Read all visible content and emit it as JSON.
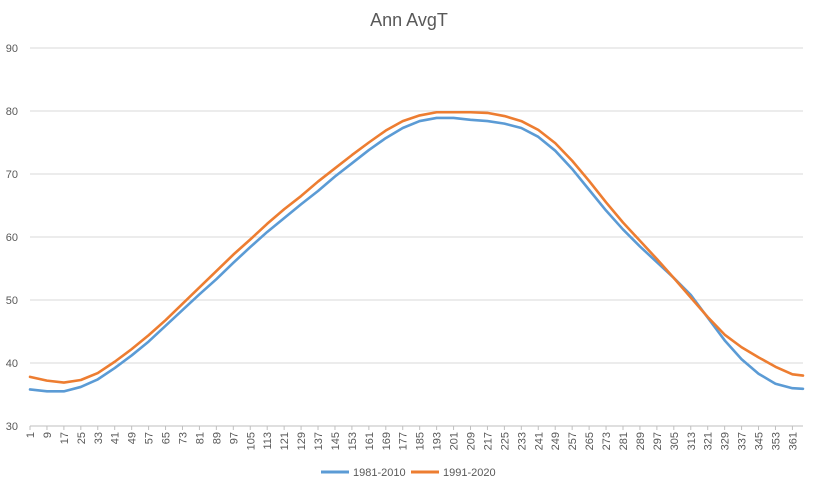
{
  "chart_data": {
    "type": "line",
    "title": "Ann AvgT",
    "xlabel": "",
    "ylabel": "",
    "xlim": [
      1,
      366
    ],
    "ylim": [
      30,
      90
    ],
    "y_ticks": [
      30,
      40,
      50,
      60,
      70,
      80,
      90
    ],
    "x_ticks": [
      1,
      9,
      17,
      25,
      33,
      41,
      49,
      57,
      65,
      73,
      81,
      89,
      97,
      105,
      113,
      121,
      129,
      137,
      145,
      153,
      161,
      169,
      177,
      185,
      193,
      201,
      209,
      217,
      225,
      233,
      241,
      249,
      257,
      265,
      273,
      281,
      289,
      297,
      305,
      313,
      321,
      329,
      337,
      345,
      353,
      361
    ],
    "grid": "horizontal",
    "legend_position": "bottom",
    "colors": {
      "1981-2010": "#5b9bd5",
      "1991-2020": "#ed7d31"
    },
    "series": [
      {
        "name": "1981-2010",
        "x": [
          1,
          9,
          17,
          25,
          33,
          41,
          49,
          57,
          65,
          73,
          81,
          89,
          97,
          105,
          113,
          121,
          129,
          137,
          145,
          153,
          161,
          169,
          177,
          185,
          193,
          201,
          209,
          217,
          225,
          233,
          241,
          249,
          257,
          265,
          273,
          281,
          289,
          297,
          305,
          313,
          321,
          329,
          337,
          345,
          353,
          361,
          366
        ],
        "values": [
          35.8,
          35.5,
          35.5,
          36.2,
          37.4,
          39.2,
          41.2,
          43.4,
          45.9,
          48.4,
          50.9,
          53.3,
          55.9,
          58.4,
          60.8,
          63.0,
          65.2,
          67.3,
          69.6,
          71.7,
          73.8,
          75.7,
          77.3,
          78.4,
          78.9,
          78.9,
          78.6,
          78.4,
          78.0,
          77.3,
          75.9,
          73.7,
          70.8,
          67.5,
          64.2,
          61.2,
          58.5,
          56.0,
          53.5,
          50.8,
          47.2,
          43.6,
          40.6,
          38.3,
          36.7,
          36.0,
          35.9
        ]
      },
      {
        "name": "1991-2020",
        "x": [
          1,
          9,
          17,
          25,
          33,
          41,
          49,
          57,
          65,
          73,
          81,
          89,
          97,
          105,
          113,
          121,
          129,
          137,
          145,
          153,
          161,
          169,
          177,
          185,
          193,
          201,
          209,
          217,
          225,
          233,
          241,
          249,
          257,
          265,
          273,
          281,
          289,
          297,
          305,
          313,
          321,
          329,
          337,
          345,
          353,
          361,
          366
        ],
        "values": [
          37.8,
          37.2,
          36.9,
          37.3,
          38.4,
          40.2,
          42.2,
          44.4,
          46.8,
          49.4,
          52.0,
          54.6,
          57.2,
          59.6,
          62.1,
          64.4,
          66.5,
          68.8,
          70.9,
          73.0,
          75.0,
          76.9,
          78.4,
          79.3,
          79.8,
          79.8,
          79.8,
          79.7,
          79.2,
          78.4,
          77.0,
          74.9,
          72.1,
          68.9,
          65.5,
          62.3,
          59.4,
          56.5,
          53.5,
          50.4,
          47.3,
          44.5,
          42.5,
          40.9,
          39.4,
          38.2,
          38.0
        ]
      }
    ]
  }
}
